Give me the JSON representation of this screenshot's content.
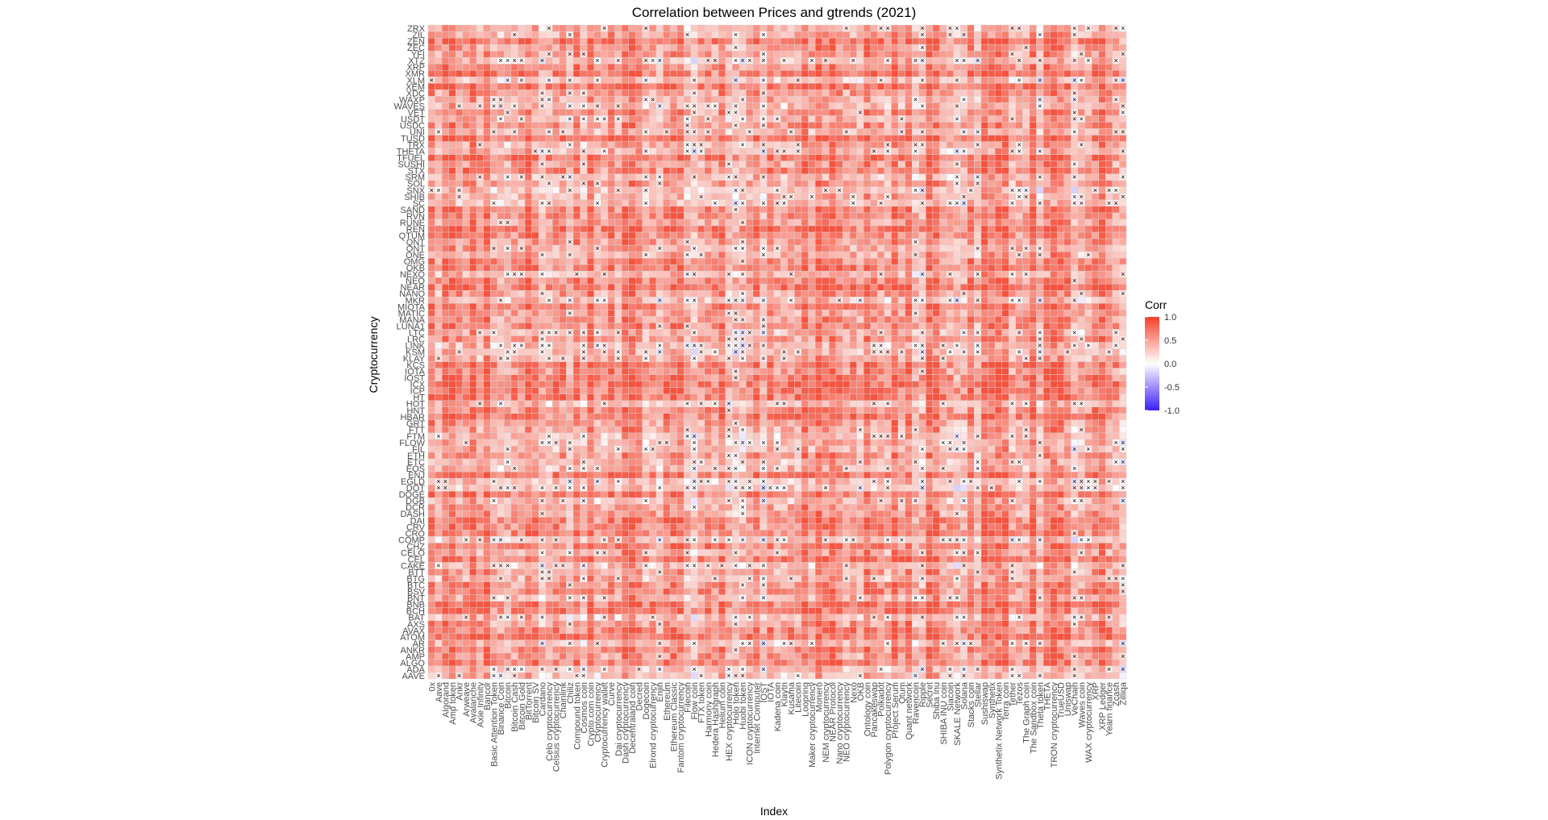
{
  "chart_data": {
    "type": "heatmap",
    "title": "Correlation between Prices and gtrends (2021)",
    "xlabel": "Index",
    "ylabel": "Cryptocurrency",
    "legend": {
      "title": "Corr",
      "ticks": [
        1.0,
        0.5,
        0.0,
        -0.5,
        -1.0
      ],
      "tick_labels": [
        "1.0",
        "0.5",
        "0.0",
        "-0.5",
        "-1.0"
      ],
      "placement": "right"
    },
    "zlim": [
      -1,
      1
    ],
    "colors": {
      "low": "#3b1ef5",
      "mid": "#ffffff",
      "high": "#f5402a",
      "grid": "#d4d4d4"
    },
    "marker": "×",
    "x_categories": [
      "0x",
      "Aave",
      "Algorand",
      "Amp token",
      "Ankr",
      "Arweave",
      "Avalanche",
      "Axie Infinity",
      "Bancor",
      "Basic Attention Token",
      "Binance Coin",
      "Bitcoin",
      "Bitcoin Cash",
      "Bitcoin Gold",
      "BitTorrent",
      "Bitcoin SV",
      "Cardano",
      "Celo cryptocurrency",
      "Celsius cryptocurrency",
      "Chainlink",
      "Chiliz",
      "Compound token",
      "Cosmos coin",
      "Crypto.com coin",
      "Cryptocurrency",
      "Cryptocurrency wallet",
      "Curve",
      "Dai cryptocurrency",
      "Dash cryptocurrency",
      "Decentraland coin",
      "Decred",
      "Dogecoin",
      "Elrond cryptocurrency",
      "Enjin",
      "Ethereum",
      "Ethereum Classic",
      "Fantom cryptocurrency",
      "Filecoin",
      "Flow coin",
      "FTX token",
      "Harmony coin",
      "Hedera Hashgraph",
      "Helium coin",
      "HEX cryptocurrency",
      "Holo token",
      "Huobi token",
      "ICON cryptocurrency",
      "Internet Computer",
      "IOST",
      "IOTA",
      "Kadena coin",
      "Klaytn",
      "Kusama",
      "Litecoin",
      "Loopring",
      "Maker cryptocurrency",
      "Monero",
      "NEM cryptocurrency",
      "NEAR Protocol",
      "Nano cryptocurrency",
      "NEO cryptocurrency",
      "Nexo",
      "OKB",
      "Ontology coin",
      "Pancakeswap",
      "Polkadot",
      "Polygon cryptocurrency",
      "Project Serum",
      "Qtum",
      "Quant network",
      "Ravencoin",
      "Ripple",
      "Secret",
      "Shiba Inu",
      "SHIBA INU coin",
      "Siacoin",
      "SKALE Network",
      "Solana",
      "Stacks coin",
      "Stellar",
      "Sushiswap",
      "Synthetix",
      "Synthetix Network Token",
      "Terra coin",
      "Tether",
      "Tezos",
      "The Graph coin",
      "The Sandbox coin",
      "Theta token",
      "THETA",
      "TRON cryptocurrency",
      "TrueUSD",
      "Uniswap",
      "VeChain",
      "Waves coin",
      "WAX cryptocurrency",
      "XRP",
      "XRP Ledger",
      "Yearn finance",
      "Zcash",
      "Zilliqa"
    ],
    "y_categories": [
      "AAVE",
      "ADA",
      "ALGO",
      "AMP",
      "ANKR",
      "AR",
      "ATOM",
      "AVAX",
      "AXS",
      "BAT",
      "BCH",
      "BNB",
      "BNT",
      "BSV",
      "BTC",
      "BTG",
      "BTT",
      "CAKE",
      "CEL",
      "CELO",
      "CHZ",
      "COMP",
      "CRO",
      "CRV",
      "DAI",
      "DASH",
      "DCR",
      "DGB",
      "DOGE",
      "DOT",
      "EGLD",
      "ENJ",
      "EOS",
      "ETC",
      "ETH",
      "FIL",
      "FLOW",
      "FTM",
      "FTT",
      "GRT",
      "HBAR",
      "HNT",
      "HOT",
      "HT",
      "ICP",
      "ICX",
      "IOST",
      "IOTA",
      "KCS",
      "KLAY",
      "KSM",
      "LINK",
      "LRC",
      "LTC",
      "LUNA1",
      "MANA",
      "MATIC",
      "MIOTA",
      "MKR",
      "NANO",
      "NEAR",
      "NEO",
      "NEXO",
      "OKB",
      "OMG",
      "ONE",
      "ONT",
      "QNT",
      "QTUM",
      "REN",
      "RUNE",
      "RVN",
      "SAND",
      "SC",
      "SHIB",
      "SNX",
      "SOL",
      "SRM",
      "STX",
      "SUSHI",
      "TFUEL",
      "THETA",
      "TRX",
      "TUSD",
      "UNI",
      "USDC",
      "USDT",
      "VET",
      "WAVES",
      "WAXP",
      "XDC",
      "XEM",
      "XLM",
      "XMR",
      "XRP",
      "XTZ",
      "YFI",
      "ZEC",
      "ZEN",
      "ZIL",
      "ZRX"
    ],
    "values_source": "100x101 grid of correlations in [-1, 1]; individual cell values are not legible at this resolution",
    "marked_cells_meaning": "cells overlaid with × are non-significant correlations"
  }
}
